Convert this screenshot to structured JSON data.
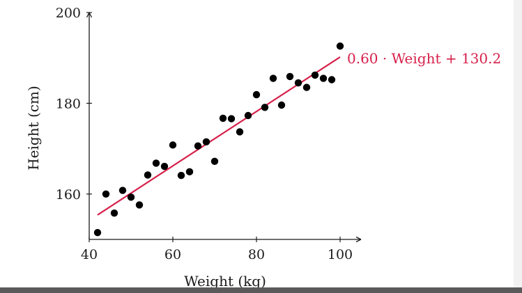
{
  "chart_data": {
    "type": "scatter",
    "title": "",
    "xlabel": "Weight (kg)",
    "ylabel": "Height (cm)",
    "xlim": [
      40,
      105
    ],
    "ylim": [
      150,
      200
    ],
    "xticks": [
      "40",
      "60",
      "80",
      "100"
    ],
    "yticks": [
      "160",
      "180",
      "200"
    ],
    "grid": false,
    "legend": "none",
    "colors": {
      "points": "#000000",
      "fit_line": "#d6204a",
      "axes": "#1a1a1a"
    },
    "series": [
      {
        "x": [
          42,
          44,
          46,
          48,
          50,
          52,
          54,
          56,
          58,
          60,
          62,
          64,
          66,
          68,
          70,
          72,
          74,
          76,
          78,
          80,
          82,
          84,
          86,
          88,
          90,
          92,
          94,
          96,
          98,
          100
        ],
        "y": [
          151.5,
          160,
          155.8,
          160.8,
          159.3,
          157.6,
          164.2,
          166.8,
          166.1,
          170.8,
          164.1,
          164.9,
          170.6,
          171.5,
          167.2,
          176.7,
          176.6,
          173.7,
          177.3,
          181.9,
          179.1,
          185.5,
          179.6,
          185.9,
          184.5,
          183.5,
          186.2,
          185.5,
          185.2,
          192.6
        ]
      }
    ],
    "fit": {
      "slope": 0.6,
      "intercept": 130.2,
      "x_range": [
        42,
        100
      ],
      "label": "0.60 · Weight + 130.2"
    }
  }
}
